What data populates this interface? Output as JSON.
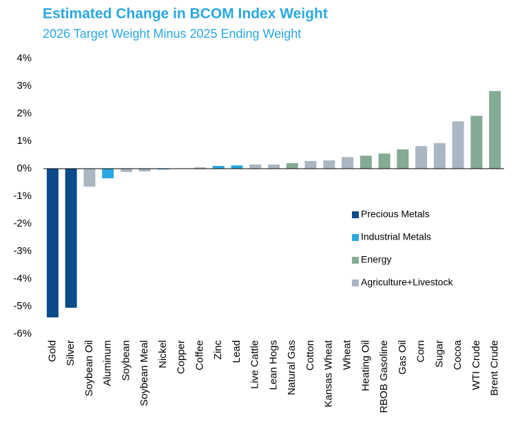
{
  "chart_data": {
    "type": "bar",
    "title": "Estimated Change in BCOM Index Weight",
    "subtitle": "2026 Target Weight Minus 2025 Ending Weight",
    "categories": [
      "Gold",
      "Silver",
      "Soybean Oil",
      "Aluminum",
      "Soybean",
      "Soybean Meal",
      "Nickel",
      "Copper",
      "Coffee",
      "Zinc",
      "Lead",
      "Live Cattle",
      "Lean Hogs",
      "Natural Gas",
      "Cotton",
      "Kansas Wheat",
      "Wheat",
      "Heating Oil",
      "RBOB Gasoline",
      "Gas Oil",
      "Corn",
      "Sugar",
      "Cocoa",
      "WTI Crude",
      "Brent Crude"
    ],
    "series": [
      {
        "name": "Precious Metals",
        "color": "#0b4a8b",
        "values": [
          -5.4,
          -5.05,
          null,
          null,
          null,
          null,
          null,
          null,
          null,
          null,
          null,
          null,
          null,
          null,
          null,
          null,
          null,
          null,
          null,
          null,
          null,
          null,
          null,
          null,
          null
        ]
      },
      {
        "name": "Industrial Metals",
        "color": "#2aa7e0",
        "values": [
          null,
          null,
          null,
          -0.35,
          null,
          null,
          -0.03,
          0,
          null,
          0.1,
          0.12,
          null,
          null,
          null,
          null,
          null,
          null,
          null,
          null,
          null,
          null,
          null,
          null,
          null,
          null
        ]
      },
      {
        "name": "Energy",
        "color": "#84ab93",
        "values": [
          null,
          null,
          null,
          null,
          null,
          null,
          null,
          null,
          null,
          null,
          null,
          null,
          null,
          0.2,
          null,
          null,
          null,
          0.47,
          0.55,
          0.7,
          null,
          null,
          null,
          1.92,
          2.82
        ]
      },
      {
        "name": "Agriculture+Livestock",
        "color": "#aab7c2",
        "values": [
          null,
          null,
          -0.65,
          null,
          -0.12,
          -0.1,
          null,
          null,
          0.05,
          null,
          null,
          0.15,
          0.15,
          null,
          0.28,
          0.3,
          0.42,
          null,
          null,
          null,
          0.82,
          0.93,
          1.72,
          null,
          null
        ]
      }
    ],
    "ylim": [
      -6,
      4
    ],
    "yticks": [
      {
        "value": -6,
        "label": "-6%"
      },
      {
        "value": -5,
        "label": "-5%"
      },
      {
        "value": -4,
        "label": "-4%"
      },
      {
        "value": -3,
        "label": "-3%"
      },
      {
        "value": -2,
        "label": "-2%"
      },
      {
        "value": -1,
        "label": "-1%"
      },
      {
        "value": 0,
        "label": "0%"
      },
      {
        "value": 1,
        "label": "1%"
      },
      {
        "value": 2,
        "label": "2%"
      },
      {
        "value": 3,
        "label": "3%"
      },
      {
        "value": 4,
        "label": "4%"
      }
    ],
    "grid": false
  }
}
